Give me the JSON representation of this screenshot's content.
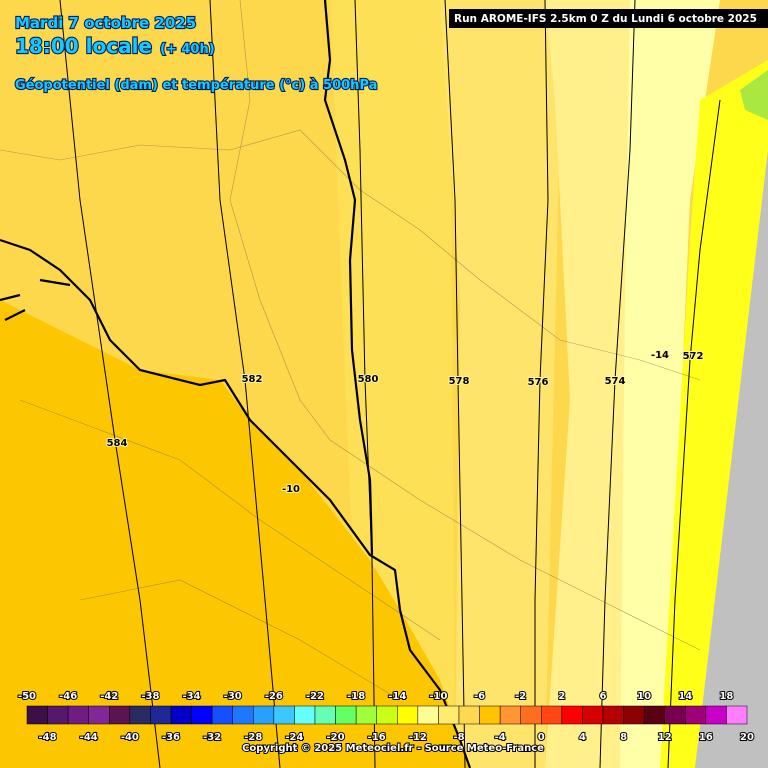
{
  "header": {
    "date": "Mardi 7 octobre 2025",
    "time": "18:00 locale",
    "lead": "(+ 40h)",
    "field": "Géopotentiel (dam) et température (°c) à 500hPa",
    "run": "Run AROME-IFS 2.5km 0 Z du Lundi 6 octobre 2025"
  },
  "contour_labels": [
    "582",
    "580",
    "578",
    "576",
    "574",
    "572",
    "584",
    "-10",
    "-14"
  ],
  "color_scale": {
    "ticks": [
      -50,
      -48,
      -46,
      -44,
      -42,
      -40,
      -38,
      -36,
      -34,
      -32,
      -30,
      -28,
      -26,
      -24,
      -22,
      -20,
      -18,
      -16,
      -14,
      -12,
      -10,
      -8,
      -6,
      -4,
      -2,
      0,
      2,
      4,
      6,
      8,
      10,
      12,
      14,
      16,
      18,
      20
    ],
    "colors": [
      "#3c0f46",
      "#55186a",
      "#6e1e82",
      "#822896",
      "#5a1450",
      "#2a2a64",
      "#1e2896",
      "#0000c8",
      "#0000ff",
      "#1450ff",
      "#1e78ff",
      "#28a0ff",
      "#3cc8ff",
      "#64ffff",
      "#64ffb4",
      "#64ff64",
      "#a0ff3c",
      "#c8ff14",
      "#ffff00",
      "#ffff96",
      "#ffeb6e",
      "#ffd750",
      "#ffc300",
      "#ff9632",
      "#ff6e1e",
      "#ff4614",
      "#ff0000",
      "#d70000",
      "#b40000",
      "#8c0000",
      "#5a0014",
      "#780050",
      "#a00078",
      "#c800c8",
      "#ff7dff"
    ]
  },
  "copyright": "Copyright © 2025 Meteociel.fr - Source Meteo-France"
}
